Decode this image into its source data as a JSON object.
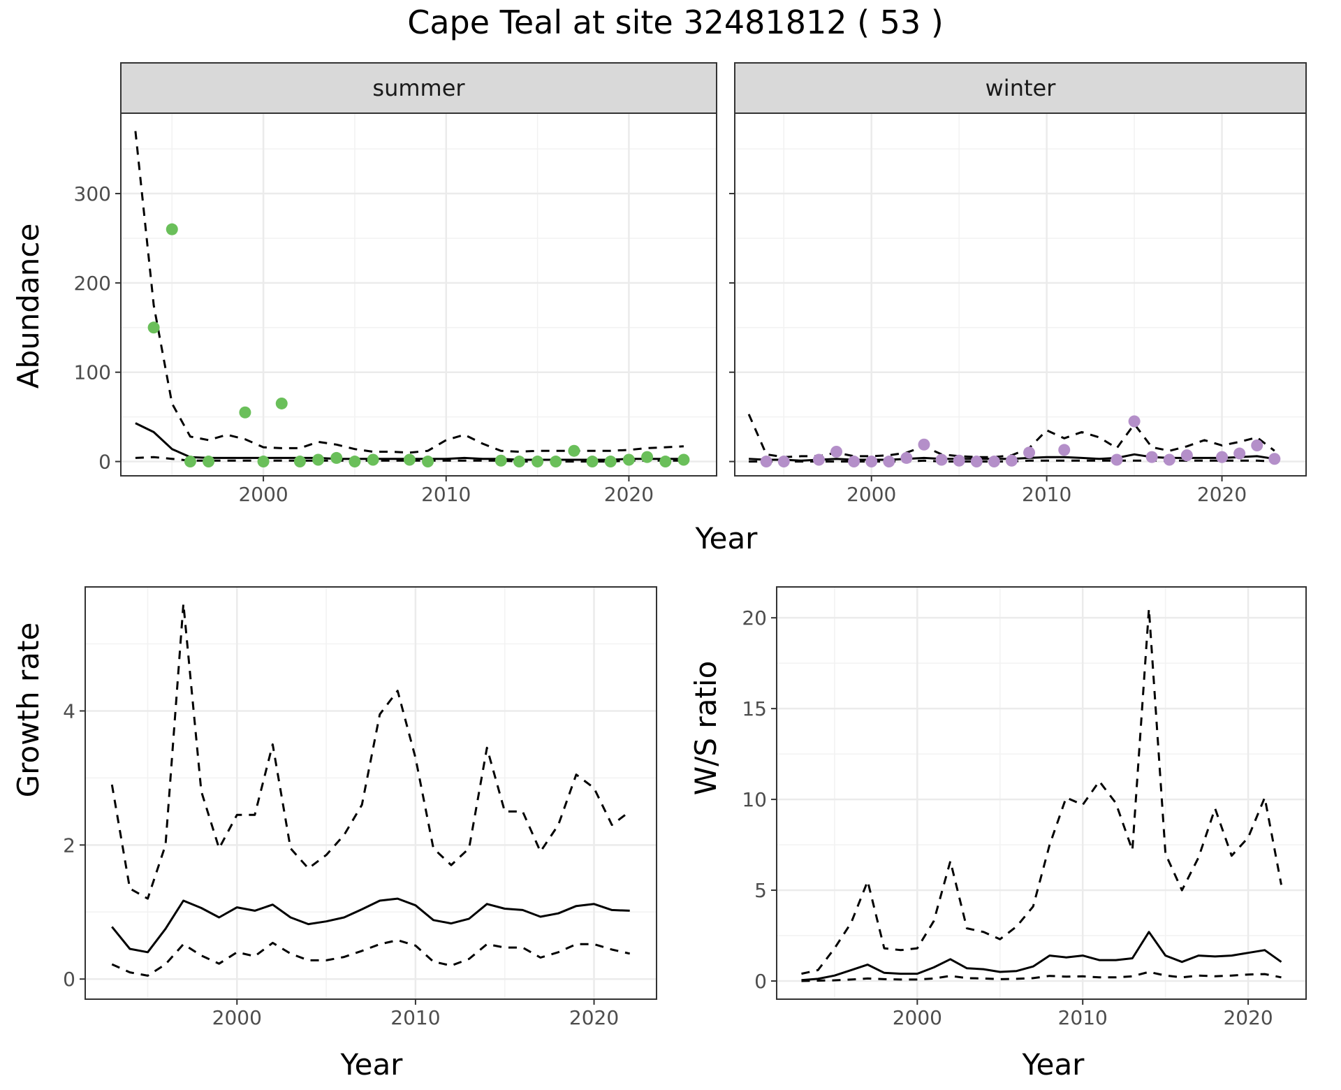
{
  "title": "Cape Teal at site 32481812 ( 53 )",
  "colors": {
    "summer_points": "#6abf5a",
    "winter_points": "#b48fc9",
    "line": "#000000",
    "grid_major": "#ebebeb",
    "strip": "#d9d9d9"
  },
  "chart_data": [
    {
      "type": "line",
      "facet": "summer",
      "strip_label": "summer",
      "xlabel": "Year",
      "ylabel": "Abundance",
      "xlim": [
        1992.2,
        2024.8
      ],
      "ylim": [
        -16,
        390
      ],
      "x_ticks": [
        2000,
        2010,
        2020
      ],
      "y_ticks": [
        0,
        100,
        200,
        300
      ],
      "series": [
        {
          "role": "upper",
          "style": "dashed",
          "x": [
            1993,
            1994,
            1995,
            1996,
            1997,
            1998,
            1999,
            2000,
            2001,
            2002,
            2003,
            2004,
            2005,
            2006,
            2007,
            2008,
            2009,
            2010,
            2011,
            2012,
            2013,
            2014,
            2015,
            2016,
            2017,
            2018,
            2019,
            2020,
            2021,
            2022,
            2023
          ],
          "y": [
            370,
            175,
            65,
            28,
            24,
            30,
            25,
            16,
            15,
            15,
            22,
            19,
            14,
            11,
            11,
            10,
            12,
            24,
            30,
            20,
            12,
            11,
            12,
            12,
            12,
            12,
            12,
            13,
            15,
            16,
            17
          ]
        },
        {
          "role": "fit",
          "style": "solid",
          "x": [
            1993,
            1994,
            1995,
            1996,
            1997,
            1998,
            1999,
            2000,
            2001,
            2002,
            2003,
            2004,
            2005,
            2006,
            2007,
            2008,
            2009,
            2010,
            2011,
            2012,
            2013,
            2014,
            2015,
            2016,
            2017,
            2018,
            2019,
            2020,
            2021,
            2022,
            2023
          ],
          "y": [
            43,
            33,
            14,
            5,
            4,
            4,
            4,
            4,
            4,
            4,
            4,
            3,
            3,
            3,
            3,
            3,
            3,
            3,
            4,
            3,
            3,
            2,
            2,
            2,
            2,
            2,
            2,
            3,
            3,
            3,
            3
          ]
        },
        {
          "role": "lower",
          "style": "dashed",
          "x": [
            1993,
            1994,
            1995,
            1996,
            1997,
            1998,
            1999,
            2000,
            2001,
            2002,
            2003,
            2004,
            2005,
            2006,
            2007,
            2008,
            2009,
            2010,
            2011,
            2012,
            2013,
            2014,
            2015,
            2016,
            2017,
            2018,
            2019,
            2020,
            2021,
            2022,
            2023
          ],
          "y": [
            4,
            5,
            3,
            1,
            1,
            1,
            1,
            1,
            1,
            1,
            1,
            1,
            1,
            1,
            1,
            1,
            1,
            1,
            1,
            1,
            1,
            0,
            0,
            0,
            0,
            0,
            0,
            1,
            1,
            1,
            1
          ]
        }
      ],
      "points": {
        "x": [
          1994,
          1995,
          1996,
          1997,
          1999,
          2000,
          2001,
          2002,
          2003,
          2004,
          2005,
          2006,
          2008,
          2009,
          2013,
          2014,
          2015,
          2016,
          2017,
          2018,
          2019,
          2020,
          2021,
          2022,
          2023
        ],
        "y": [
          150,
          260,
          0,
          0,
          55,
          0,
          65,
          0,
          2,
          4,
          0,
          2,
          2,
          0,
          1,
          0,
          0,
          0,
          12,
          0,
          0,
          2,
          5,
          0,
          2
        ]
      }
    },
    {
      "type": "line",
      "facet": "winter",
      "strip_label": "winter",
      "xlabel": "Year",
      "ylabel": "Abundance",
      "xlim": [
        1992.2,
        2024.8
      ],
      "ylim": [
        -16,
        390
      ],
      "x_ticks": [
        2000,
        2010,
        2020
      ],
      "y_ticks": [
        0,
        100,
        200,
        300
      ],
      "series": [
        {
          "role": "upper",
          "style": "dashed",
          "x": [
            1993,
            1994,
            1995,
            1996,
            1997,
            1998,
            1999,
            2000,
            2001,
            2002,
            2003,
            2004,
            2005,
            2006,
            2007,
            2008,
            2009,
            2010,
            2011,
            2012,
            2013,
            2014,
            2015,
            2016,
            2017,
            2018,
            2019,
            2020,
            2021,
            2022,
            2023
          ],
          "y": [
            53,
            8,
            5,
            6,
            6,
            10,
            6,
            6,
            7,
            10,
            17,
            8,
            6,
            5,
            5,
            7,
            15,
            35,
            26,
            33,
            27,
            15,
            42,
            16,
            12,
            17,
            24,
            18,
            22,
            27,
            12
          ]
        },
        {
          "role": "fit",
          "style": "solid",
          "x": [
            1993,
            1994,
            1995,
            1996,
            1997,
            1998,
            1999,
            2000,
            2001,
            2002,
            2003,
            2004,
            2005,
            2006,
            2007,
            2008,
            2009,
            2010,
            2011,
            2012,
            2013,
            2014,
            2015,
            2016,
            2017,
            2018,
            2019,
            2020,
            2021,
            2022,
            2023
          ],
          "y": [
            3,
            2,
            2,
            1,
            2,
            3,
            2,
            2,
            2,
            3,
            4,
            3,
            3,
            3,
            3,
            3,
            4,
            5,
            5,
            4,
            3,
            4,
            8,
            5,
            4,
            4,
            4,
            4,
            5,
            6,
            3
          ]
        },
        {
          "role": "lower",
          "style": "dashed",
          "x": [
            1993,
            1994,
            1995,
            1996,
            1997,
            1998,
            1999,
            2000,
            2001,
            2002,
            2003,
            2004,
            2005,
            2006,
            2007,
            2008,
            2009,
            2010,
            2011,
            2012,
            2013,
            2014,
            2015,
            2016,
            2017,
            2018,
            2019,
            2020,
            2021,
            2022,
            2023
          ],
          "y": [
            0,
            0,
            0,
            0,
            0,
            0,
            0,
            0,
            0,
            0,
            1,
            0,
            0,
            0,
            0,
            0,
            1,
            1,
            1,
            1,
            1,
            1,
            1,
            1,
            1,
            1,
            1,
            1,
            1,
            1,
            0
          ]
        }
      ],
      "points": {
        "x": [
          1994,
          1995,
          1997,
          1998,
          1999,
          2000,
          2001,
          2002,
          2003,
          2004,
          2005,
          2006,
          2007,
          2008,
          2009,
          2011,
          2014,
          2015,
          2016,
          2017,
          2018,
          2020,
          2021,
          2022,
          2023
        ],
        "y": [
          0,
          0,
          2,
          11,
          0,
          0,
          0,
          4,
          19,
          2,
          1,
          0,
          0,
          1,
          10,
          13,
          2,
          45,
          5,
          2,
          7,
          5,
          9,
          18,
          3
        ]
      }
    },
    {
      "type": "line",
      "xlabel": "Year",
      "ylabel": "Growth rate",
      "xlim": [
        1991.5,
        2023.5
      ],
      "ylim": [
        -0.3,
        5.85
      ],
      "x_ticks": [
        2000,
        2010,
        2020
      ],
      "y_ticks": [
        0,
        2,
        4
      ],
      "series": [
        {
          "role": "upper",
          "style": "dashed",
          "x": [
            1993,
            1994,
            1995,
            1996,
            1997,
            1998,
            1999,
            2000,
            2001,
            2002,
            2003,
            2004,
            2005,
            2006,
            2007,
            2008,
            2009,
            2010,
            2011,
            2012,
            2013,
            2014,
            2015,
            2016,
            2017,
            2018,
            2019,
            2020,
            2021,
            2022
          ],
          "y": [
            2.9,
            1.35,
            1.2,
            2.0,
            5.6,
            2.8,
            1.95,
            2.45,
            2.45,
            3.5,
            1.95,
            1.65,
            1.85,
            2.15,
            2.6,
            3.95,
            4.3,
            3.3,
            1.95,
            1.7,
            1.95,
            3.45,
            2.5,
            2.5,
            1.9,
            2.3,
            3.05,
            2.85,
            2.3,
            2.5
          ]
        },
        {
          "role": "fit",
          "style": "solid",
          "x": [
            1993,
            1994,
            1995,
            1996,
            1997,
            1998,
            1999,
            2000,
            2001,
            2002,
            2003,
            2004,
            2005,
            2006,
            2007,
            2008,
            2009,
            2010,
            2011,
            2012,
            2013,
            2014,
            2015,
            2016,
            2017,
            2018,
            2019,
            2020,
            2021,
            2022
          ],
          "y": [
            0.78,
            0.45,
            0.4,
            0.75,
            1.17,
            1.06,
            0.92,
            1.07,
            1.02,
            1.11,
            0.92,
            0.82,
            0.86,
            0.92,
            1.04,
            1.17,
            1.2,
            1.1,
            0.88,
            0.83,
            0.9,
            1.12,
            1.05,
            1.03,
            0.93,
            0.98,
            1.09,
            1.12,
            1.03,
            1.02
          ]
        },
        {
          "role": "lower",
          "style": "dashed",
          "x": [
            1993,
            1994,
            1995,
            1996,
            1997,
            1998,
            1999,
            2000,
            2001,
            2002,
            2003,
            2004,
            2005,
            2006,
            2007,
            2008,
            2009,
            2010,
            2011,
            2012,
            2013,
            2014,
            2015,
            2016,
            2017,
            2018,
            2019,
            2020,
            2021,
            2022
          ],
          "y": [
            0.22,
            0.1,
            0.05,
            0.22,
            0.52,
            0.35,
            0.23,
            0.4,
            0.34,
            0.54,
            0.38,
            0.28,
            0.28,
            0.33,
            0.42,
            0.52,
            0.58,
            0.5,
            0.26,
            0.2,
            0.3,
            0.52,
            0.47,
            0.47,
            0.32,
            0.4,
            0.52,
            0.52,
            0.44,
            0.38
          ]
        }
      ]
    },
    {
      "type": "line",
      "xlabel": "Year",
      "ylabel": "W/S ratio",
      "xlim": [
        1991.5,
        2023.5
      ],
      "ylim": [
        -1.0,
        21.7
      ],
      "x_ticks": [
        2000,
        2010,
        2020
      ],
      "y_ticks": [
        0,
        5,
        10,
        15,
        20
      ],
      "series": [
        {
          "role": "upper",
          "style": "dashed",
          "x": [
            1993,
            1994,
            1995,
            1996,
            1997,
            1998,
            1999,
            2000,
            2001,
            2002,
            2003,
            2004,
            2005,
            2006,
            2007,
            2008,
            2009,
            2010,
            2011,
            2012,
            2013,
            2014,
            2015,
            2016,
            2017,
            2018,
            2019,
            2020,
            2021,
            2022
          ],
          "y": [
            0.4,
            0.6,
            1.8,
            3.2,
            5.5,
            1.8,
            1.7,
            1.8,
            3.3,
            6.6,
            2.9,
            2.7,
            2.3,
            3.0,
            4.1,
            7.5,
            10.1,
            9.7,
            11.0,
            9.8,
            7.2,
            20.5,
            7.0,
            5.0,
            6.8,
            9.5,
            6.9,
            7.9,
            10.1,
            5.3
          ]
        },
        {
          "role": "fit",
          "style": "solid",
          "x": [
            1993,
            1994,
            1995,
            1996,
            1997,
            1998,
            1999,
            2000,
            2001,
            2002,
            2003,
            2004,
            2005,
            2006,
            2007,
            2008,
            2009,
            2010,
            2011,
            2012,
            2013,
            2014,
            2015,
            2016,
            2017,
            2018,
            2019,
            2020,
            2021,
            2022
          ],
          "y": [
            0.05,
            0.12,
            0.3,
            0.6,
            0.9,
            0.45,
            0.4,
            0.4,
            0.75,
            1.2,
            0.7,
            0.65,
            0.5,
            0.55,
            0.8,
            1.4,
            1.3,
            1.4,
            1.15,
            1.15,
            1.25,
            2.7,
            1.4,
            1.05,
            1.4,
            1.35,
            1.4,
            1.55,
            1.7,
            1.05
          ]
        },
        {
          "role": "lower",
          "style": "dashed",
          "x": [
            1993,
            1994,
            1995,
            1996,
            1997,
            1998,
            1999,
            2000,
            2001,
            2002,
            2003,
            2004,
            2005,
            2006,
            2007,
            2008,
            2009,
            2010,
            2011,
            2012,
            2013,
            2014,
            2015,
            2016,
            2017,
            2018,
            2019,
            2020,
            2021,
            2022
          ],
          "y": [
            0.0,
            0.02,
            0.04,
            0.08,
            0.14,
            0.1,
            0.08,
            0.08,
            0.14,
            0.28,
            0.16,
            0.14,
            0.1,
            0.12,
            0.16,
            0.28,
            0.24,
            0.26,
            0.2,
            0.2,
            0.26,
            0.5,
            0.3,
            0.2,
            0.3,
            0.26,
            0.3,
            0.36,
            0.38,
            0.2
          ]
        }
      ]
    }
  ]
}
